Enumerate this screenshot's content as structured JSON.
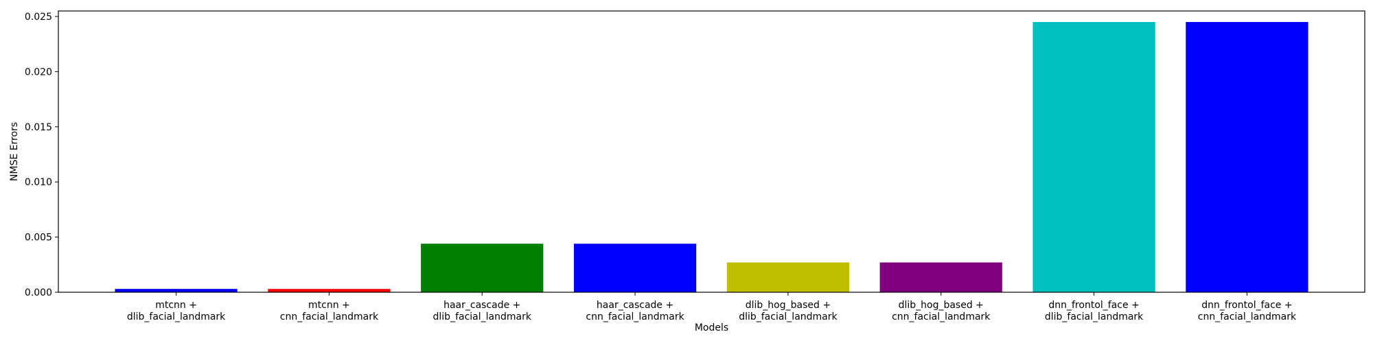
{
  "chart_data": {
    "type": "bar",
    "title": "",
    "xlabel": "Models",
    "ylabel": "NMSE Errors",
    "ylim": [
      0,
      0.0255
    ],
    "yticks": [
      "0.000",
      "0.005",
      "0.010",
      "0.015",
      "0.020",
      "0.025"
    ],
    "categories": [
      [
        "mtcnn +",
        "dlib_facial_landmark"
      ],
      [
        "mtcnn +",
        "cnn_facial_landmark"
      ],
      [
        "haar_cascade +",
        "dlib_facial_landmark"
      ],
      [
        "haar_cascade +",
        "cnn_facial_landmark"
      ],
      [
        "dlib_hog_based +",
        "dlib_facial_landmark"
      ],
      [
        "dlib_hog_based +",
        "cnn_facial_landmark"
      ],
      [
        "dnn_frontol_face +",
        "dlib_facial_landmark"
      ],
      [
        "dnn_frontol_face +",
        "cnn_facial_landmark"
      ]
    ],
    "values": [
      0.0003,
      0.0003,
      0.0044,
      0.0044,
      0.0027,
      0.0027,
      0.0245,
      0.0245
    ],
    "colors": [
      "#0000ff",
      "#ff0000",
      "#008000",
      "#0000ff",
      "#bfbf00",
      "#800080",
      "#00bfbf",
      "#0000ff"
    ],
    "grid": false,
    "legend": "none"
  }
}
